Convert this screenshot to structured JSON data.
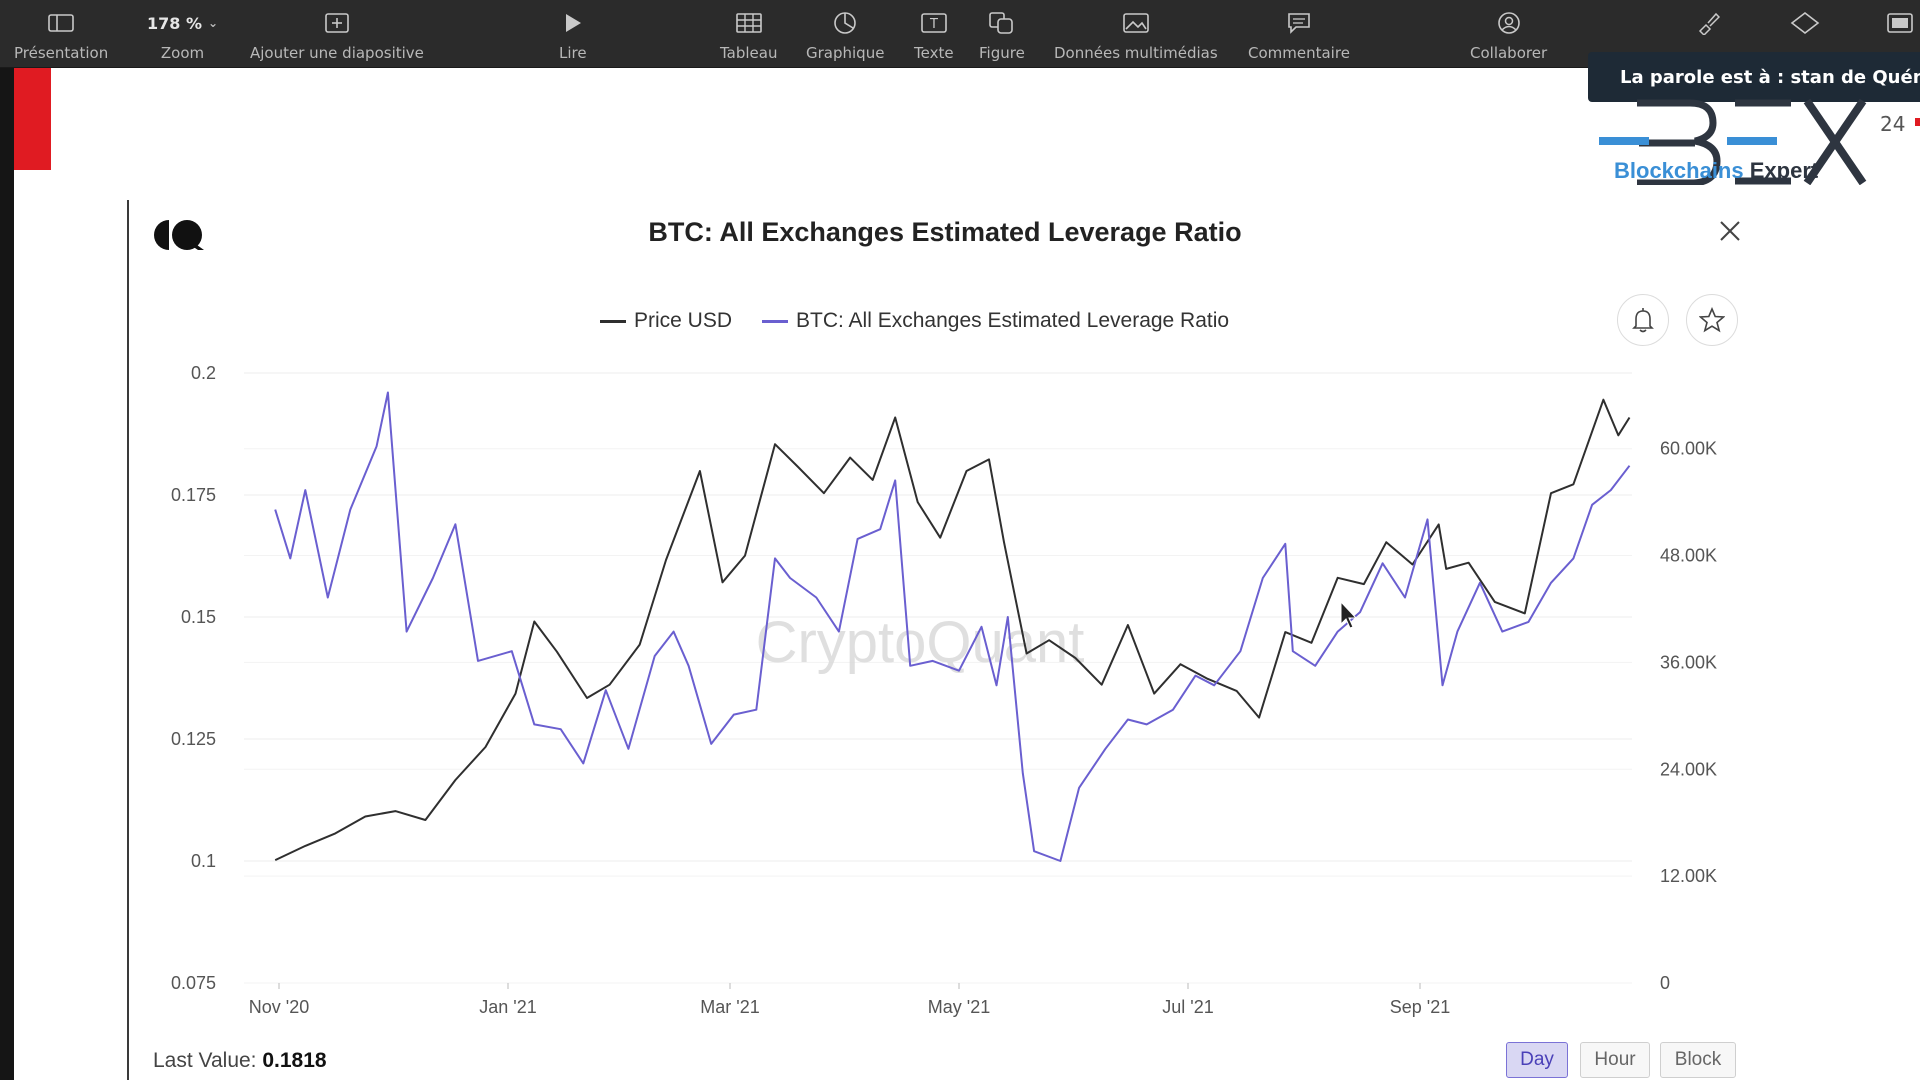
{
  "toolbar": {
    "items": [
      {
        "label": "Présentation",
        "icon": "sidebar-icon"
      },
      {
        "label": "Zoom",
        "icon": "zoom-dropdown",
        "value": "178 %"
      },
      {
        "label": "Ajouter une diapositive",
        "icon": "add-slide-icon"
      },
      {
        "label": "Lire",
        "icon": "play-icon"
      },
      {
        "label": "Tableau",
        "icon": "table-icon"
      },
      {
        "label": "Graphique",
        "icon": "chart-icon"
      },
      {
        "label": "Texte",
        "icon": "text-icon"
      },
      {
        "label": "Figure",
        "icon": "shape-icon"
      },
      {
        "label": "Données multimédias",
        "icon": "media-icon"
      },
      {
        "label": "Commentaire",
        "icon": "comment-icon"
      },
      {
        "label": "Collaborer",
        "icon": "collaborate-icon"
      }
    ]
  },
  "speaker_banner": "La parole est à : stan de Quéneta",
  "bex": {
    "blue": "Blockchains",
    "dark": "Expert",
    "slide_number": "24"
  },
  "chart_panel": {
    "title": "BTC: All Exchanges Estimated Leverage Ratio",
    "watermark": "CryptoQuant",
    "last_value_label": "Last Value:",
    "last_value": "0.1818",
    "interval_buttons": [
      "Day",
      "Hour",
      "Block"
    ],
    "active_interval": "Day"
  },
  "colors": {
    "price": "#2f2f2f",
    "ratio": "#6a5fd0",
    "accent_red": "#e01b22",
    "bex_blue": "#3a8fd6"
  },
  "chart_data": {
    "type": "line",
    "title": "BTC: All Exchanges Estimated Leverage Ratio",
    "legend": [
      "Price USD",
      "BTC: All Exchanges Estimated Leverage Ratio"
    ],
    "legend_placement": "top-center",
    "x_ticks": [
      "Nov '20",
      "Jan '21",
      "Mar '21",
      "May '21",
      "Jul '21",
      "Sep '21"
    ],
    "y_left_ticks": [
      "0.2",
      "0.175",
      "0.15",
      "0.125",
      "0.1",
      "0.075"
    ],
    "y_right_ticks": [
      "60.00K",
      "48.00K",
      "36.00K",
      "24.00K",
      "12.00K",
      "0"
    ],
    "y_left_range": [
      0.075,
      0.2
    ],
    "y_right_range": [
      0,
      68500
    ],
    "grid": true,
    "series": [
      {
        "name": "Price USD",
        "axis": "right",
        "points": [
          [
            "2020-10-31",
            13800
          ],
          [
            "2020-11-08",
            15400
          ],
          [
            "2020-11-16",
            16800
          ],
          [
            "2020-11-24",
            18700
          ],
          [
            "2020-12-02",
            19300
          ],
          [
            "2020-12-10",
            18300
          ],
          [
            "2020-12-18",
            22800
          ],
          [
            "2020-12-26",
            26500
          ],
          [
            "2021-01-03",
            32500
          ],
          [
            "2021-01-08",
            40600
          ],
          [
            "2021-01-14",
            37200
          ],
          [
            "2021-01-22",
            32000
          ],
          [
            "2021-01-28",
            33500
          ],
          [
            "2021-02-05",
            38000
          ],
          [
            "2021-02-12",
            47500
          ],
          [
            "2021-02-21",
            57500
          ],
          [
            "2021-02-27",
            45000
          ],
          [
            "2021-03-05",
            48000
          ],
          [
            "2021-03-13",
            60500
          ],
          [
            "2021-03-19",
            58000
          ],
          [
            "2021-03-26",
            55000
          ],
          [
            "2021-04-02",
            59000
          ],
          [
            "2021-04-08",
            56500
          ],
          [
            "2021-04-14",
            63500
          ],
          [
            "2021-04-20",
            54000
          ],
          [
            "2021-04-26",
            50000
          ],
          [
            "2021-05-03",
            57500
          ],
          [
            "2021-05-09",
            58800
          ],
          [
            "2021-05-13",
            49500
          ],
          [
            "2021-05-19",
            37000
          ],
          [
            "2021-05-25",
            38500
          ],
          [
            "2021-06-01",
            36500
          ],
          [
            "2021-06-08",
            33500
          ],
          [
            "2021-06-15",
            40200
          ],
          [
            "2021-06-22",
            32500
          ],
          [
            "2021-06-29",
            35800
          ],
          [
            "2021-07-06",
            34200
          ],
          [
            "2021-07-14",
            32800
          ],
          [
            "2021-07-20",
            29800
          ],
          [
            "2021-07-27",
            39400
          ],
          [
            "2021-08-03",
            38200
          ],
          [
            "2021-08-10",
            45500
          ],
          [
            "2021-08-17",
            44800
          ],
          [
            "2021-08-23",
            49500
          ],
          [
            "2021-08-30",
            47000
          ],
          [
            "2021-09-06",
            51500
          ],
          [
            "2021-09-08",
            46500
          ],
          [
            "2021-09-14",
            47200
          ],
          [
            "2021-09-21",
            42800
          ],
          [
            "2021-09-29",
            41500
          ],
          [
            "2021-10-06",
            55000
          ],
          [
            "2021-10-12",
            56000
          ],
          [
            "2021-10-20",
            65500
          ],
          [
            "2021-10-24",
            61500
          ],
          [
            "2021-10-27",
            63500
          ]
        ]
      },
      {
        "name": "BTC: All Exchanges Estimated Leverage Ratio",
        "axis": "left",
        "points": [
          [
            "2020-10-31",
            0.172
          ],
          [
            "2020-11-04",
            0.162
          ],
          [
            "2020-11-08",
            0.176
          ],
          [
            "2020-11-14",
            0.154
          ],
          [
            "2020-11-20",
            0.172
          ],
          [
            "2020-11-27",
            0.185
          ],
          [
            "2020-11-30",
            0.196
          ],
          [
            "2020-12-05",
            0.147
          ],
          [
            "2020-12-12",
            0.158
          ],
          [
            "2020-12-18",
            0.169
          ],
          [
            "2020-12-24",
            0.141
          ],
          [
            "2021-01-02",
            0.143
          ],
          [
            "2021-01-08",
            0.128
          ],
          [
            "2021-01-15",
            0.127
          ],
          [
            "2021-01-21",
            0.12
          ],
          [
            "2021-01-27",
            0.135
          ],
          [
            "2021-02-02",
            0.123
          ],
          [
            "2021-02-09",
            0.142
          ],
          [
            "2021-02-14",
            0.147
          ],
          [
            "2021-02-18",
            0.14
          ],
          [
            "2021-02-24",
            0.124
          ],
          [
            "2021-03-02",
            0.13
          ],
          [
            "2021-03-08",
            0.131
          ],
          [
            "2021-03-13",
            0.162
          ],
          [
            "2021-03-17",
            0.158
          ],
          [
            "2021-03-24",
            0.154
          ],
          [
            "2021-03-30",
            0.147
          ],
          [
            "2021-04-04",
            0.166
          ],
          [
            "2021-04-10",
            0.168
          ],
          [
            "2021-04-14",
            0.178
          ],
          [
            "2021-04-18",
            0.14
          ],
          [
            "2021-04-24",
            0.141
          ],
          [
            "2021-05-01",
            0.139
          ],
          [
            "2021-05-07",
            0.148
          ],
          [
            "2021-05-11",
            0.136
          ],
          [
            "2021-05-14",
            0.15
          ],
          [
            "2021-05-18",
            0.118
          ],
          [
            "2021-05-21",
            0.102
          ],
          [
            "2021-05-28",
            0.1
          ],
          [
            "2021-06-02",
            0.115
          ],
          [
            "2021-06-09",
            0.123
          ],
          [
            "2021-06-15",
            0.129
          ],
          [
            "2021-06-20",
            0.128
          ],
          [
            "2021-06-27",
            0.131
          ],
          [
            "2021-07-03",
            0.138
          ],
          [
            "2021-07-08",
            0.136
          ],
          [
            "2021-07-15",
            0.143
          ],
          [
            "2021-07-21",
            0.158
          ],
          [
            "2021-07-27",
            0.165
          ],
          [
            "2021-07-29",
            0.143
          ],
          [
            "2021-08-04",
            0.14
          ],
          [
            "2021-08-10",
            0.147
          ],
          [
            "2021-08-16",
            0.151
          ],
          [
            "2021-08-22",
            0.161
          ],
          [
            "2021-08-28",
            0.154
          ],
          [
            "2021-09-03",
            0.17
          ],
          [
            "2021-09-07",
            0.136
          ],
          [
            "2021-09-11",
            0.147
          ],
          [
            "2021-09-17",
            0.157
          ],
          [
            "2021-09-23",
            0.147
          ],
          [
            "2021-09-30",
            0.149
          ],
          [
            "2021-10-06",
            0.157
          ],
          [
            "2021-10-12",
            0.162
          ],
          [
            "2021-10-17",
            0.173
          ],
          [
            "2021-10-22",
            0.176
          ],
          [
            "2021-10-27",
            0.181
          ]
        ]
      }
    ]
  }
}
